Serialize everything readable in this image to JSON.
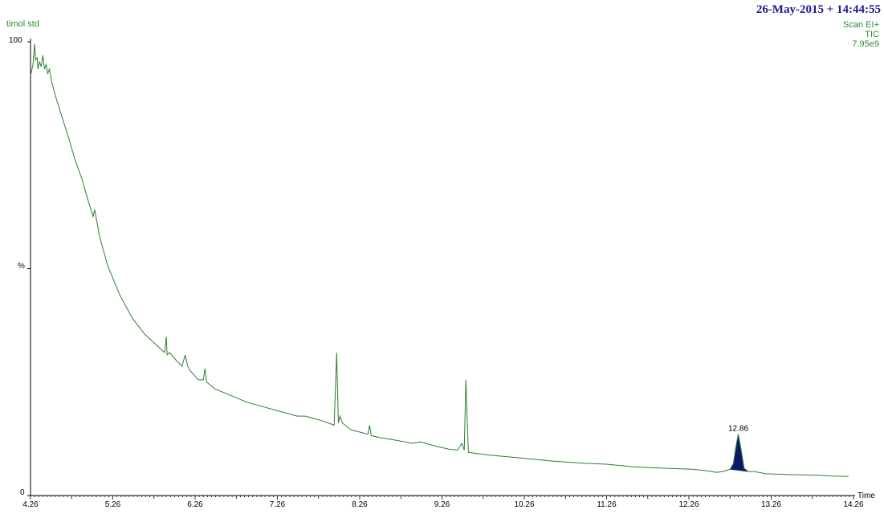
{
  "header": {
    "sample_name": "timol std",
    "datetime": "26-May-2015 + 14:44:55",
    "scan_mode": "Scan EI+",
    "trace": "TIC",
    "intensity": "7.95e9"
  },
  "colors": {
    "trace": "#2e7d2e",
    "peak_fill": "#0a1a66",
    "header_text": "#1a1a8c",
    "label_text": "#2e8b2e",
    "axis": "#000000"
  },
  "chart_data": {
    "type": "line",
    "title": "",
    "xlabel": "Time",
    "ylabel": "%",
    "xlim": [
      4.26,
      14.26
    ],
    "ylim": [
      0,
      100
    ],
    "x_ticks": [
      4.26,
      5.26,
      6.26,
      7.26,
      8.26,
      9.26,
      10.26,
      11.26,
      12.26,
      13.26,
      14.26
    ],
    "x_tick_labels": [
      "4.26",
      "5.26",
      "6.26",
      "7.26",
      "8.26",
      "9.26",
      "10.26",
      "11.26",
      "12.26",
      "13.26",
      "14.26"
    ],
    "y_tick_labels": [
      {
        "value": 100,
        "label": "100"
      },
      {
        "value": 50,
        "label": "%"
      },
      {
        "value": 0,
        "label": "0"
      }
    ],
    "grid": false,
    "series": [
      {
        "x": [
          4.26,
          4.29,
          4.31,
          4.32,
          4.34,
          4.35,
          4.37,
          4.39,
          4.41,
          4.43,
          4.45,
          4.47,
          4.49,
          4.52,
          4.58,
          4.65,
          4.72,
          4.8,
          4.88,
          4.96,
          5.02,
          5.04,
          5.1,
          5.2,
          5.35,
          5.5,
          5.65,
          5.8,
          5.89,
          5.91,
          5.92,
          5.95,
          6.02,
          6.1,
          6.14,
          6.17,
          6.2,
          6.3,
          6.36,
          6.38,
          6.4,
          6.5,
          6.7,
          6.9,
          7.1,
          7.3,
          7.5,
          7.6,
          7.8,
          7.95,
          7.98,
          8.0,
          8.02,
          8.05,
          8.15,
          8.3,
          8.36,
          8.38,
          8.4,
          8.5,
          8.7,
          8.9,
          9.0,
          9.2,
          9.35,
          9.45,
          9.5,
          9.53,
          9.55,
          9.58,
          9.7,
          9.9,
          10.2,
          10.6,
          11.0,
          11.26,
          11.6,
          12.0,
          12.3,
          12.5,
          12.6,
          12.7,
          12.76,
          12.8,
          12.83,
          12.86,
          12.89,
          12.93,
          12.98,
          13.05,
          13.2,
          13.5,
          13.8,
          14.0,
          14.2
        ],
        "y": [
          92.5,
          95,
          99.5,
          96,
          96.5,
          94,
          95.5,
          94.5,
          97,
          94,
          95,
          93,
          94,
          91,
          87,
          83,
          79,
          74,
          70,
          65,
          61.5,
          63,
          57,
          50.5,
          44,
          39,
          35.5,
          33,
          31.5,
          35,
          31,
          31.5,
          30,
          28.5,
          31,
          28.5,
          27.5,
          25.5,
          25.5,
          28,
          25,
          23.5,
          22,
          20.5,
          19.5,
          18.5,
          17.5,
          17.5,
          16.5,
          15.5,
          31.5,
          16,
          17.5,
          16,
          14.5,
          13.8,
          13.5,
          15.5,
          13.2,
          12.8,
          12.2,
          11.5,
          11.8,
          10.8,
          10.2,
          10,
          11.5,
          10,
          25.5,
          9.5,
          9.2,
          8.8,
          8.3,
          7.6,
          7.1,
          6.9,
          6.3,
          6.0,
          5.8,
          5.4,
          5.1,
          5.4,
          5.8,
          7.0,
          10.5,
          13.5,
          10.5,
          6.0,
          5.3,
          5.3,
          4.8,
          4.6,
          4.5,
          4.3,
          4.2
        ]
      }
    ],
    "annotations": [
      {
        "x": 12.86,
        "y": 13.5,
        "label": "12.86"
      }
    ],
    "shaded_peak": {
      "x_start": 12.76,
      "x_end": 12.98,
      "apex": 12.86
    }
  }
}
